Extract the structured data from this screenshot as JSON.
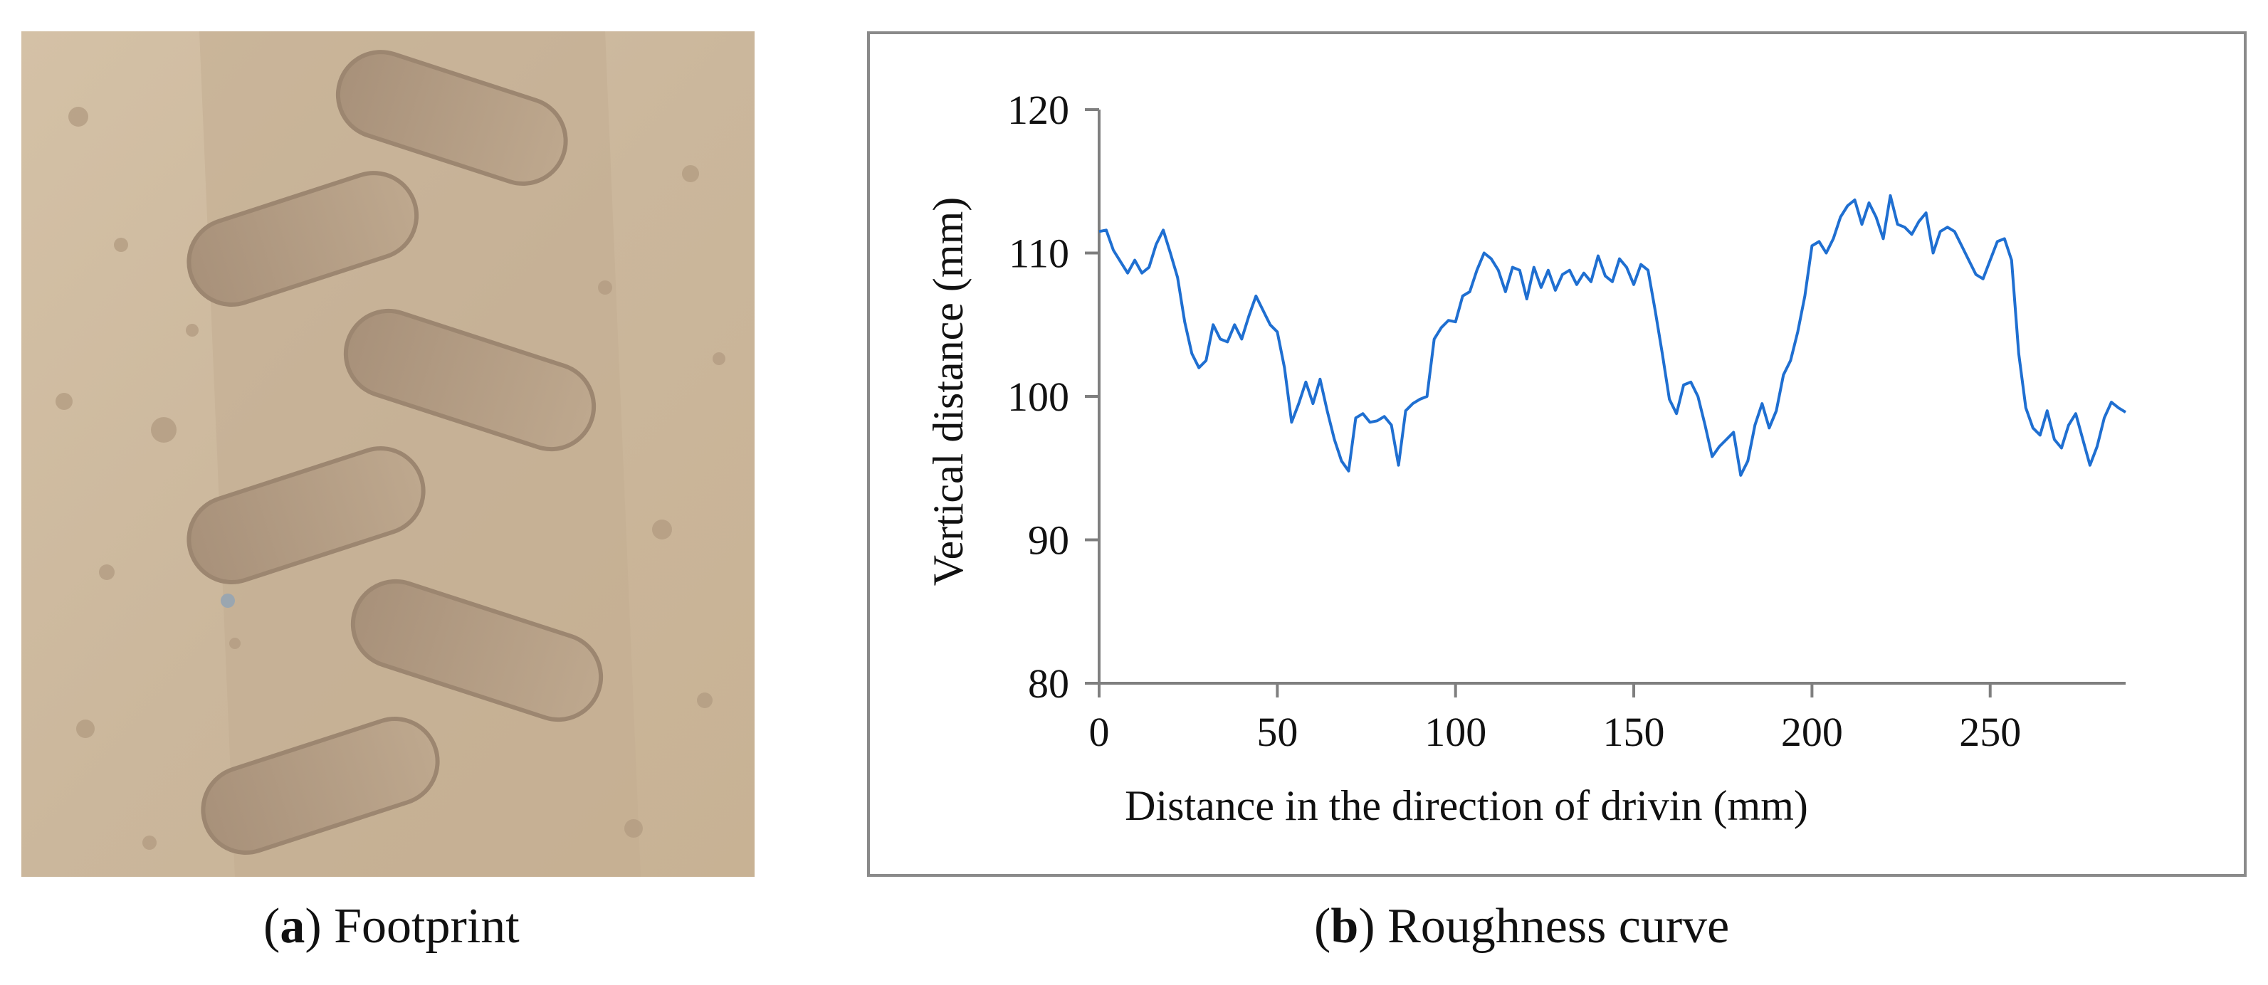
{
  "panel_a": {
    "letter": "a",
    "caption": "Footprint"
  },
  "panel_b": {
    "letter": "b",
    "caption": "Roughness curve"
  },
  "chart_data": {
    "type": "line",
    "title": "",
    "xlabel": "Distance in the direction of drivin (mm)",
    "ylabel": "Vertical distance (mm)",
    "xlim": [
      0,
      288
    ],
    "ylim": [
      80,
      120
    ],
    "x_ticks": [
      0,
      50,
      100,
      150,
      200,
      250
    ],
    "y_ticks": [
      80,
      90,
      100,
      110,
      120
    ],
    "grid": false,
    "legend": "none",
    "line_color": "#1f6fd1",
    "series": [
      {
        "x": [
          0,
          2,
          4,
          6,
          8,
          10,
          12,
          14,
          16,
          18,
          20,
          22,
          24,
          26,
          28,
          30,
          32,
          34,
          36,
          38,
          40,
          42,
          44,
          46,
          48,
          50,
          52,
          54,
          56,
          58,
          60,
          62,
          64,
          66,
          68,
          70,
          72,
          74,
          76,
          78,
          80,
          82,
          84,
          86,
          88,
          90,
          92,
          94,
          96,
          98,
          100,
          102,
          104,
          106,
          108,
          110,
          112,
          114,
          116,
          118,
          120,
          122,
          124,
          126,
          128,
          130,
          132,
          134,
          136,
          138,
          140,
          142,
          144,
          146,
          148,
          150,
          152,
          154,
          156,
          158,
          160,
          162,
          164,
          166,
          168,
          170,
          172,
          174,
          176,
          178,
          180,
          182,
          184,
          186,
          188,
          190,
          192,
          194,
          196,
          198,
          200,
          202,
          204,
          206,
          208,
          210,
          212,
          214,
          216,
          218,
          220,
          222,
          224,
          226,
          228,
          230,
          232,
          234,
          236,
          238,
          240,
          242,
          244,
          246,
          248,
          250,
          252,
          254,
          256,
          258,
          260,
          262,
          264,
          266,
          268,
          270,
          272,
          274,
          276,
          278,
          280,
          282,
          284,
          286,
          288
        ],
        "y": [
          111.5,
          111.6,
          110.2,
          109.4,
          108.6,
          109.5,
          108.6,
          109.0,
          110.6,
          111.6,
          110.0,
          108.3,
          105.2,
          103.0,
          102.0,
          102.5,
          105.0,
          104.0,
          103.8,
          105.0,
          104.0,
          105.6,
          107.0,
          106.0,
          105.0,
          104.5,
          102.0,
          98.2,
          99.5,
          101.0,
          99.5,
          101.2,
          99.0,
          97.0,
          95.5,
          94.8,
          98.5,
          98.8,
          98.2,
          98.3,
          98.6,
          98.0,
          95.2,
          99.0,
          99.5,
          99.8,
          100.0,
          104.0,
          104.8,
          105.3,
          105.2,
          107.0,
          107.3,
          108.8,
          110.0,
          109.6,
          108.8,
          107.3,
          109.0,
          108.8,
          106.8,
          109.0,
          107.6,
          108.8,
          107.4,
          108.5,
          108.8,
          107.8,
          108.6,
          108.0,
          109.8,
          108.4,
          108.0,
          109.6,
          109.0,
          107.8,
          109.2,
          108.8,
          106.0,
          103.0,
          99.8,
          98.8,
          100.8,
          101.0,
          100.0,
          98.0,
          95.8,
          96.5,
          97.0,
          97.5,
          94.5,
          95.5,
          98.0,
          99.5,
          97.8,
          99.0,
          101.5,
          102.5,
          104.5,
          107.0,
          110.5,
          110.8,
          110.0,
          111.0,
          112.5,
          113.3,
          113.7,
          112.0,
          113.5,
          112.5,
          111.0,
          114.0,
          112.0,
          111.8,
          111.3,
          112.2,
          112.8,
          110.0,
          111.5,
          111.8,
          111.5,
          110.5,
          109.5,
          108.5,
          108.2,
          109.5,
          110.8,
          111.0,
          109.5,
          103.0,
          99.2,
          97.8,
          97.3,
          99.0,
          97.0,
          96.4,
          98.0,
          98.8,
          97.0,
          95.2,
          96.5,
          98.5,
          99.6,
          99.2,
          98.9
        ]
      }
    ]
  }
}
